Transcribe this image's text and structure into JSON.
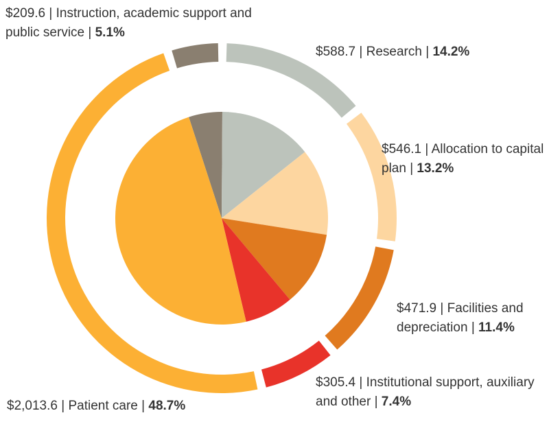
{
  "chart_data": {
    "type": "pie",
    "categories": [
      "Instruction, academic support and public service",
      "Research",
      "Allocation to capital plan",
      "Facilities and depreciation",
      "Institutional support, auxiliary and other",
      "Patient care"
    ],
    "values": [
      209.6,
      588.7,
      546.1,
      471.9,
      305.4,
      2013.6
    ],
    "value_labels": [
      "$209.6",
      "$588.7",
      "$546.1",
      "$471.9",
      "$305.4",
      "$2,013.6"
    ],
    "percents": [
      5.1,
      14.2,
      13.2,
      11.4,
      7.4,
      48.7
    ],
    "percent_labels": [
      "5.1%",
      "14.2%",
      "13.2%",
      "11.4%",
      "7.4%",
      "48.7%"
    ],
    "separator": "|",
    "colors": [
      "#8a7f70",
      "#bcc3bb",
      "#fdd6a0",
      "#e07a1f",
      "#e8332a",
      "#fcb034"
    ]
  }
}
